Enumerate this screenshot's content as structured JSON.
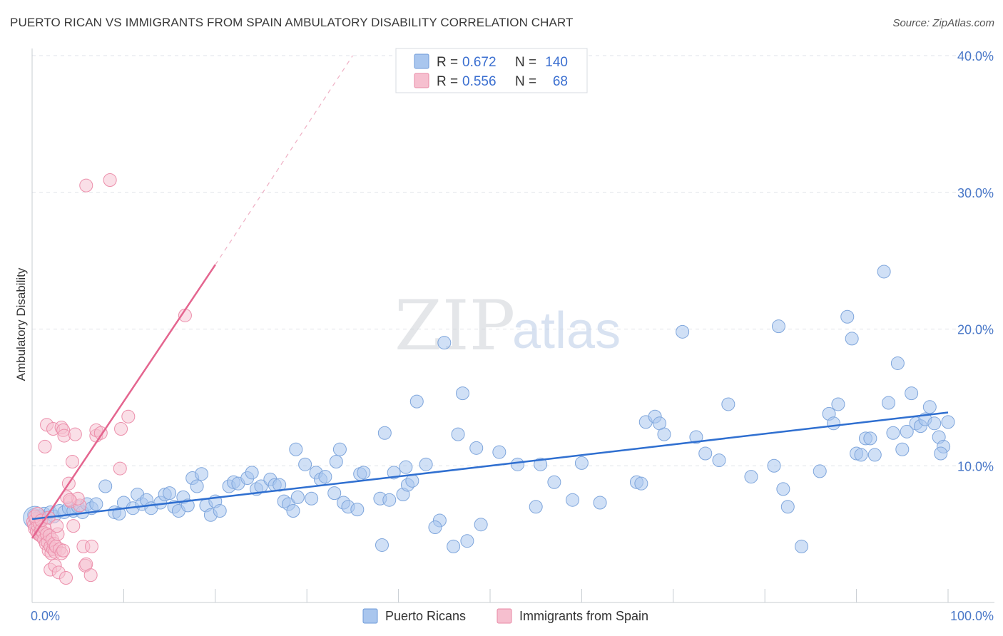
{
  "title": "PUERTO RICAN VS IMMIGRANTS FROM SPAIN AMBULATORY DISABILITY CORRELATION CHART",
  "source": "Source: ZipAtlas.com",
  "watermark": {
    "part1": "ZIP",
    "part2": "atlas"
  },
  "legend": {
    "r_label": "R =",
    "n_label": "N =",
    "rows": [
      {
        "r": "0.672",
        "n": "140",
        "color": "#a9c6ee",
        "stroke": "#6f9bd8"
      },
      {
        "r": "0.556",
        "n": "68",
        "color": "#f6bfcf",
        "stroke": "#e88aa6"
      }
    ]
  },
  "colors": {
    "blue_fill": "#a9c6ee",
    "blue_stroke": "#7fa6dc",
    "blue_line": "#2f6fd0",
    "pink_fill": "#f6bfcf",
    "pink_stroke": "#ec8fab",
    "pink_line": "#e4658f",
    "grid": "#dfe3e8"
  },
  "chart_data": {
    "type": "scatter",
    "xlabel": "",
    "ylabel": "Ambulatory Disability",
    "xlim": [
      0,
      100
    ],
    "ylim": [
      0,
      40
    ],
    "x_tick_labels": [
      "0.0%",
      "100.0%"
    ],
    "y_tick_labels": [
      "10.0%",
      "20.0%",
      "30.0%",
      "40.0%"
    ],
    "y_ticks": [
      10,
      20,
      30,
      40
    ],
    "series": [
      {
        "name": "Puerto Ricans",
        "r": 0.672,
        "n": 140,
        "trendline": {
          "x": [
            0,
            100
          ],
          "y": [
            6.1,
            13.9
          ],
          "dashed_extension": false
        },
        "points": [
          [
            0.2,
            6.4
          ],
          [
            0.5,
            6.0
          ],
          [
            0.8,
            6.3
          ],
          [
            1.0,
            6.0
          ],
          [
            1.3,
            6.5
          ],
          [
            1.5,
            6.2
          ],
          [
            2.0,
            6.6
          ],
          [
            2.4,
            6.3
          ],
          [
            3.0,
            6.7
          ],
          [
            3.5,
            6.6
          ],
          [
            4.0,
            6.9
          ],
          [
            4.5,
            6.7
          ],
          [
            5.0,
            7.0
          ],
          [
            5.5,
            6.6
          ],
          [
            6.0,
            7.2
          ],
          [
            6.5,
            6.9
          ],
          [
            7.0,
            7.2
          ],
          [
            8.0,
            8.5
          ],
          [
            9.0,
            6.6
          ],
          [
            9.5,
            6.5
          ],
          [
            10.0,
            7.3
          ],
          [
            11.0,
            6.9
          ],
          [
            11.5,
            7.9
          ],
          [
            12.0,
            7.2
          ],
          [
            12.5,
            7.5
          ],
          [
            13.0,
            6.9
          ],
          [
            14.0,
            7.3
          ],
          [
            14.5,
            7.9
          ],
          [
            15.0,
            8.0
          ],
          [
            15.5,
            7.0
          ],
          [
            16.0,
            6.7
          ],
          [
            16.5,
            7.7
          ],
          [
            17.0,
            7.1
          ],
          [
            17.5,
            9.1
          ],
          [
            18.0,
            8.5
          ],
          [
            18.5,
            9.4
          ],
          [
            19.0,
            7.1
          ],
          [
            19.5,
            6.4
          ],
          [
            20.0,
            7.4
          ],
          [
            20.5,
            6.7
          ],
          [
            21.5,
            8.5
          ],
          [
            22.0,
            8.8
          ],
          [
            22.5,
            8.7
          ],
          [
            23.5,
            9.1
          ],
          [
            24.0,
            9.5
          ],
          [
            24.5,
            8.3
          ],
          [
            25.0,
            8.5
          ],
          [
            26.0,
            9.0
          ],
          [
            26.5,
            8.6
          ],
          [
            27.0,
            8.6
          ],
          [
            27.5,
            7.4
          ],
          [
            28.0,
            7.2
          ],
          [
            28.5,
            6.7
          ],
          [
            29.0,
            7.7
          ],
          [
            28.8,
            11.2
          ],
          [
            29.8,
            10.1
          ],
          [
            30.5,
            7.6
          ],
          [
            31.0,
            9.5
          ],
          [
            31.5,
            9.0
          ],
          [
            32.0,
            9.2
          ],
          [
            33.0,
            8.0
          ],
          [
            33.2,
            10.3
          ],
          [
            33.6,
            11.2
          ],
          [
            34.0,
            7.3
          ],
          [
            34.5,
            7.0
          ],
          [
            35.5,
            6.8
          ],
          [
            35.8,
            9.4
          ],
          [
            36.2,
            9.5
          ],
          [
            38.0,
            7.6
          ],
          [
            38.2,
            4.2
          ],
          [
            38.5,
            12.4
          ],
          [
            39.0,
            7.5
          ],
          [
            39.5,
            9.5
          ],
          [
            40.5,
            7.9
          ],
          [
            40.8,
            9.9
          ],
          [
            41.0,
            8.6
          ],
          [
            42.0,
            14.7
          ],
          [
            41.5,
            8.9
          ],
          [
            43.0,
            10.1
          ],
          [
            44.5,
            6.0
          ],
          [
            44.0,
            5.5
          ],
          [
            45.0,
            19.0
          ],
          [
            46.0,
            4.1
          ],
          [
            46.5,
            12.3
          ],
          [
            47.0,
            15.3
          ],
          [
            47.5,
            4.5
          ],
          [
            49.0,
            5.7
          ],
          [
            48.5,
            11.3
          ],
          [
            51.0,
            11.0
          ],
          [
            53.0,
            10.1
          ],
          [
            55.5,
            10.1
          ],
          [
            55.0,
            7.0
          ],
          [
            59.0,
            7.5
          ],
          [
            66.0,
            8.8
          ],
          [
            66.5,
            8.7
          ],
          [
            67.0,
            13.2
          ],
          [
            68.0,
            13.6
          ],
          [
            68.5,
            13.1
          ],
          [
            69.0,
            12.3
          ],
          [
            71.0,
            19.8
          ],
          [
            72.5,
            12.1
          ],
          [
            73.5,
            10.9
          ],
          [
            75.0,
            10.4
          ],
          [
            76.0,
            14.5
          ],
          [
            78.5,
            9.2
          ],
          [
            81.0,
            10.0
          ],
          [
            81.5,
            20.2
          ],
          [
            82.0,
            8.3
          ],
          [
            82.5,
            7.0
          ],
          [
            84.0,
            4.1
          ],
          [
            87.0,
            13.8
          ],
          [
            87.5,
            13.1
          ],
          [
            88.0,
            14.5
          ],
          [
            89.0,
            20.9
          ],
          [
            89.5,
            19.3
          ],
          [
            90.0,
            10.9
          ],
          [
            90.5,
            10.8
          ],
          [
            91.0,
            12.0
          ],
          [
            91.5,
            12.0
          ],
          [
            92.0,
            10.8
          ],
          [
            93.0,
            24.2
          ],
          [
            93.5,
            14.6
          ],
          [
            94.0,
            12.4
          ],
          [
            94.5,
            17.5
          ],
          [
            95.0,
            11.2
          ],
          [
            95.5,
            12.5
          ],
          [
            96.0,
            15.3
          ],
          [
            96.5,
            13.1
          ],
          [
            97.0,
            12.9
          ],
          [
            97.5,
            13.4
          ],
          [
            98.0,
            14.3
          ],
          [
            98.5,
            13.1
          ],
          [
            99.0,
            12.1
          ],
          [
            99.5,
            11.4
          ],
          [
            100.0,
            13.2
          ],
          [
            99.2,
            10.9
          ],
          [
            86.0,
            9.6
          ],
          [
            60.0,
            10.2
          ],
          [
            62.0,
            7.3
          ],
          [
            57.0,
            8.8
          ]
        ]
      },
      {
        "name": "Immigrants from Spain",
        "r": 0.556,
        "n": 68,
        "trendline": {
          "x": [
            0,
            20
          ],
          "y": [
            4.7,
            24.7
          ],
          "dashed_to": [
            35,
            40
          ]
        },
        "points": [
          [
            0.1,
            5.9
          ],
          [
            0.2,
            5.7
          ],
          [
            0.3,
            5.4
          ],
          [
            0.4,
            6.1
          ],
          [
            0.5,
            5.2
          ],
          [
            0.6,
            5.6
          ],
          [
            0.7,
            5.0
          ],
          [
            0.8,
            5.8
          ],
          [
            0.9,
            4.9
          ],
          [
            1.0,
            5.3
          ],
          [
            1.1,
            4.8
          ],
          [
            1.2,
            5.1
          ],
          [
            1.3,
            4.6
          ],
          [
            1.4,
            5.4
          ],
          [
            1.5,
            4.3
          ],
          [
            1.6,
            5.0
          ],
          [
            1.7,
            4.4
          ],
          [
            1.8,
            3.8
          ],
          [
            1.9,
            4.9
          ],
          [
            2.0,
            4.1
          ],
          [
            2.1,
            3.6
          ],
          [
            2.2,
            4.6
          ],
          [
            2.3,
            3.9
          ],
          [
            2.4,
            4.3
          ],
          [
            2.5,
            3.7
          ],
          [
            2.6,
            4.1
          ],
          [
            2.8,
            5.0
          ],
          [
            3.0,
            3.9
          ],
          [
            3.2,
            3.6
          ],
          [
            3.4,
            3.8
          ],
          [
            1.4,
            11.4
          ],
          [
            1.6,
            13.0
          ],
          [
            2.3,
            12.7
          ],
          [
            3.2,
            12.8
          ],
          [
            3.4,
            12.6
          ],
          [
            3.5,
            12.2
          ],
          [
            4.2,
            7.4
          ],
          [
            4.0,
            8.7
          ],
          [
            4.4,
            10.3
          ],
          [
            4.7,
            12.3
          ],
          [
            5.2,
            7.1
          ],
          [
            5.6,
            4.1
          ],
          [
            5.8,
            2.7
          ],
          [
            5.9,
            2.8
          ],
          [
            6.5,
            4.1
          ],
          [
            6.4,
            2.0
          ],
          [
            7.0,
            12.2
          ],
          [
            7.0,
            12.6
          ],
          [
            7.5,
            12.4
          ],
          [
            9.6,
            9.8
          ],
          [
            9.7,
            12.7
          ],
          [
            10.5,
            13.6
          ],
          [
            2.0,
            2.4
          ],
          [
            2.5,
            2.7
          ],
          [
            2.9,
            2.2
          ],
          [
            3.7,
            1.8
          ],
          [
            4.5,
            5.6
          ],
          [
            5.0,
            7.6
          ],
          [
            3.8,
            7.7
          ],
          [
            4.1,
            7.5
          ],
          [
            5.9,
            30.5
          ],
          [
            8.5,
            30.9
          ],
          [
            16.7,
            21.0
          ],
          [
            0.3,
            6.3
          ],
          [
            0.6,
            6.5
          ],
          [
            1.0,
            6.0
          ],
          [
            1.8,
            6.2
          ],
          [
            2.7,
            5.6
          ]
        ]
      }
    ]
  },
  "bottom_legend": [
    "Puerto Ricans",
    "Immigrants from Spain"
  ]
}
